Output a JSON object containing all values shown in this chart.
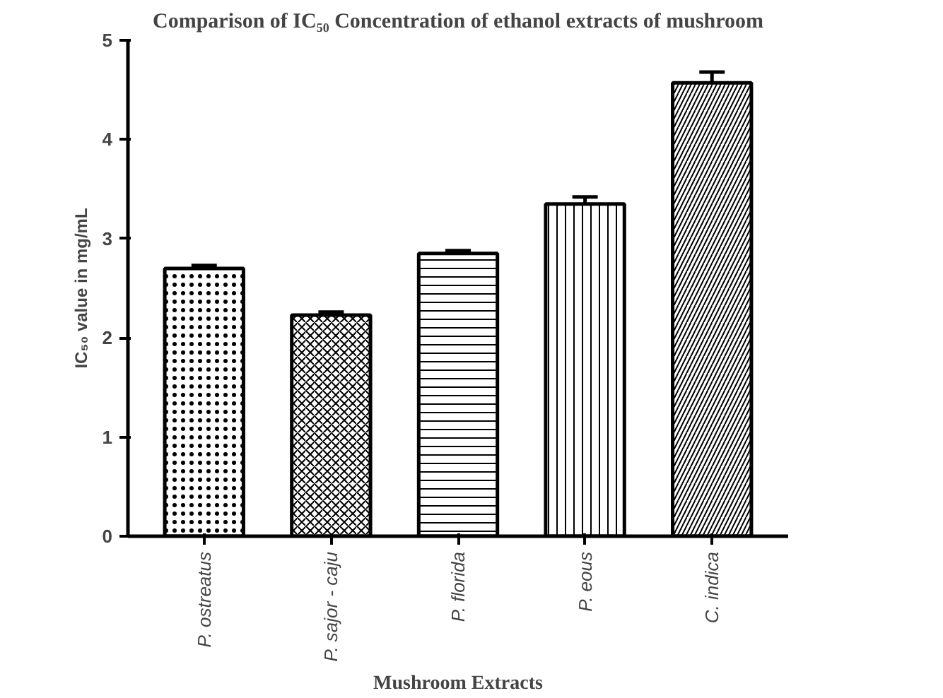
{
  "chart_data": {
    "type": "bar",
    "title": "Comparison of IC₅₀ Concentration of ethanol extracts of mushroom",
    "xlabel": "Mushroom Extracts",
    "ylabel": "IC₅₀ value in mg/mL",
    "categories": [
      "P. ostreatus",
      "P. sajor - caju",
      "P. florida",
      "P. eous",
      "C. indica"
    ],
    "values": [
      2.7,
      2.23,
      2.85,
      3.35,
      4.57
    ],
    "errors": [
      0.03,
      0.03,
      0.03,
      0.07,
      0.11
    ],
    "colors": [
      "#ffffff",
      "#ffffff",
      "#ffffff",
      "#ffffff",
      "#ffffff"
    ],
    "ylim": [
      0,
      5
    ],
    "yticks": [
      0,
      1,
      2,
      3,
      4,
      5
    ],
    "grid": false
  }
}
